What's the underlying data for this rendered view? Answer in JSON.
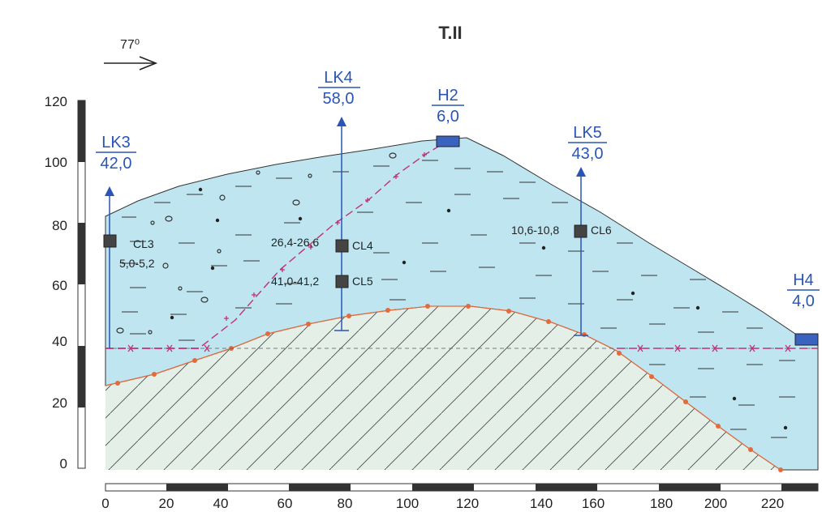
{
  "title": "T.II",
  "direction": {
    "label": "77⁰"
  },
  "y_axis_ticks": [
    "0",
    "20",
    "40",
    "60",
    "80",
    "100",
    "120"
  ],
  "x_axis_ticks": [
    "0",
    "20",
    "40",
    "60",
    "80",
    "100",
    "120",
    "140",
    "160",
    "180",
    "200",
    "220"
  ],
  "boreholes": [
    {
      "name": "LK3",
      "depth": "42,0"
    },
    {
      "name": "LK4",
      "depth": "58,0"
    },
    {
      "name": "H2",
      "depth": "6,0"
    },
    {
      "name": "LK5",
      "depth": "43,0"
    },
    {
      "name": "H4",
      "depth": "4,0"
    }
  ],
  "samples": [
    {
      "code": "CL3",
      "interval": "5,0-5,2"
    },
    {
      "code": "CL4",
      "interval": "26,4-26,6"
    },
    {
      "code": "CL5",
      "interval": "41,0-41,2"
    },
    {
      "code": "CL6",
      "interval": "10,6-10,8"
    }
  ],
  "colors": {
    "upper_layer": "#bfe6f0",
    "lower_layer": "#e4efe8",
    "borehole_blue": "#2a55b5",
    "groundwater": "#c0307a",
    "boundary_dots": "#e56a3a"
  }
}
